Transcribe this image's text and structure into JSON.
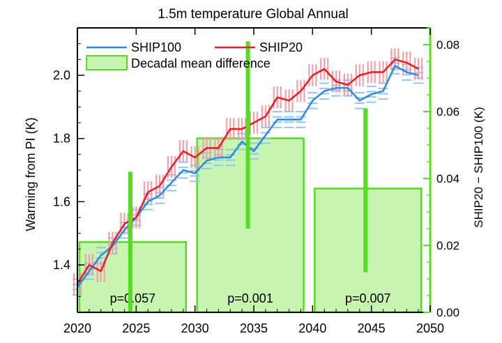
{
  "chart_data": {
    "type": "line+bar",
    "title": "1.5m temperature Global Annual",
    "xlabel": "",
    "ylabel_left": "Warming from PI (K)",
    "ylabel_right": "SHIP20 − SHIP100 (K)",
    "xlim": [
      2020,
      2050
    ],
    "ylim_left": [
      1.25,
      2.15
    ],
    "ylim_right": [
      0.0,
      0.085
    ],
    "x_ticks": [
      2020,
      2025,
      2030,
      2035,
      2040,
      2045,
      2050
    ],
    "x_tick_labels": [
      "2020",
      "2025",
      "2030",
      "2035",
      "2040",
      "2045",
      "2050"
    ],
    "y_left_ticks": [
      1.4,
      1.6,
      1.8,
      2.0
    ],
    "y_left_tick_labels": [
      "1.4",
      "1.6",
      "1.8",
      "2.0"
    ],
    "y_right_ticks": [
      0.0,
      0.02,
      0.04,
      0.06,
      0.08
    ],
    "y_right_tick_labels": [
      "0.00",
      "0.02",
      "0.04",
      "0.06",
      "0.08"
    ],
    "colors": {
      "ship100": "#2e8ae6",
      "ship20": "#e8202a",
      "ship100_band": "#8ec5f2",
      "ship20_band": "#f2a0a8",
      "bar_fill": "#c8f5b0",
      "bar_edge": "#55dd22",
      "bar_err": "#55dd22",
      "right_axis": "#55dd22",
      "axes": "#000000"
    },
    "legend": [
      {
        "key": "ship100",
        "label": "SHIP100",
        "kind": "line"
      },
      {
        "key": "ship20",
        "label": "SHIP20",
        "kind": "line"
      },
      {
        "key": "decadal",
        "label": "Decadal mean difference",
        "kind": "box"
      }
    ],
    "x": [
      2020,
      2021,
      2022,
      2023,
      2024,
      2025,
      2026,
      2027,
      2028,
      2029,
      2030,
      2031,
      2032,
      2033,
      2034,
      2035,
      2036,
      2037,
      2038,
      2039,
      2040,
      2041,
      2042,
      2043,
      2044,
      2045,
      2046,
      2047,
      2048,
      2049
    ],
    "series": [
      {
        "name": "SHIP100",
        "key": "ship100",
        "values": [
          1.33,
          1.38,
          1.43,
          1.46,
          1.51,
          1.55,
          1.6,
          1.62,
          1.66,
          1.7,
          1.69,
          1.73,
          1.74,
          1.74,
          1.79,
          1.76,
          1.81,
          1.86,
          1.86,
          1.86,
          1.92,
          1.95,
          1.96,
          1.96,
          1.92,
          1.94,
          1.95,
          2.03,
          2.01,
          2.0
        ],
        "band": 0.025
      },
      {
        "name": "SHIP20",
        "key": "ship20",
        "values": [
          1.34,
          1.4,
          1.38,
          1.47,
          1.53,
          1.55,
          1.63,
          1.65,
          1.71,
          1.76,
          1.74,
          1.77,
          1.77,
          1.83,
          1.83,
          1.85,
          1.87,
          1.93,
          1.92,
          1.95,
          2.0,
          2.02,
          1.98,
          1.97,
          2.0,
          2.01,
          2.01,
          2.05,
          2.04,
          2.02
        ],
        "band": 0.035
      }
    ],
    "decadal_bars": [
      {
        "x_start": 2020,
        "x_end": 2029,
        "value": 0.021,
        "err_x": 2024.5,
        "err_low": 0.0,
        "err_high": 0.042,
        "p_label": "p=0.057"
      },
      {
        "x_start": 2030,
        "x_end": 2039,
        "value": 0.052,
        "err_x": 2034.5,
        "err_low": 0.025,
        "err_high": 0.081,
        "p_label": "p=0.001"
      },
      {
        "x_start": 2040,
        "x_end": 2049,
        "value": 0.037,
        "err_x": 2044.5,
        "err_low": 0.012,
        "err_high": 0.061,
        "p_label": "p=0.007"
      }
    ]
  }
}
